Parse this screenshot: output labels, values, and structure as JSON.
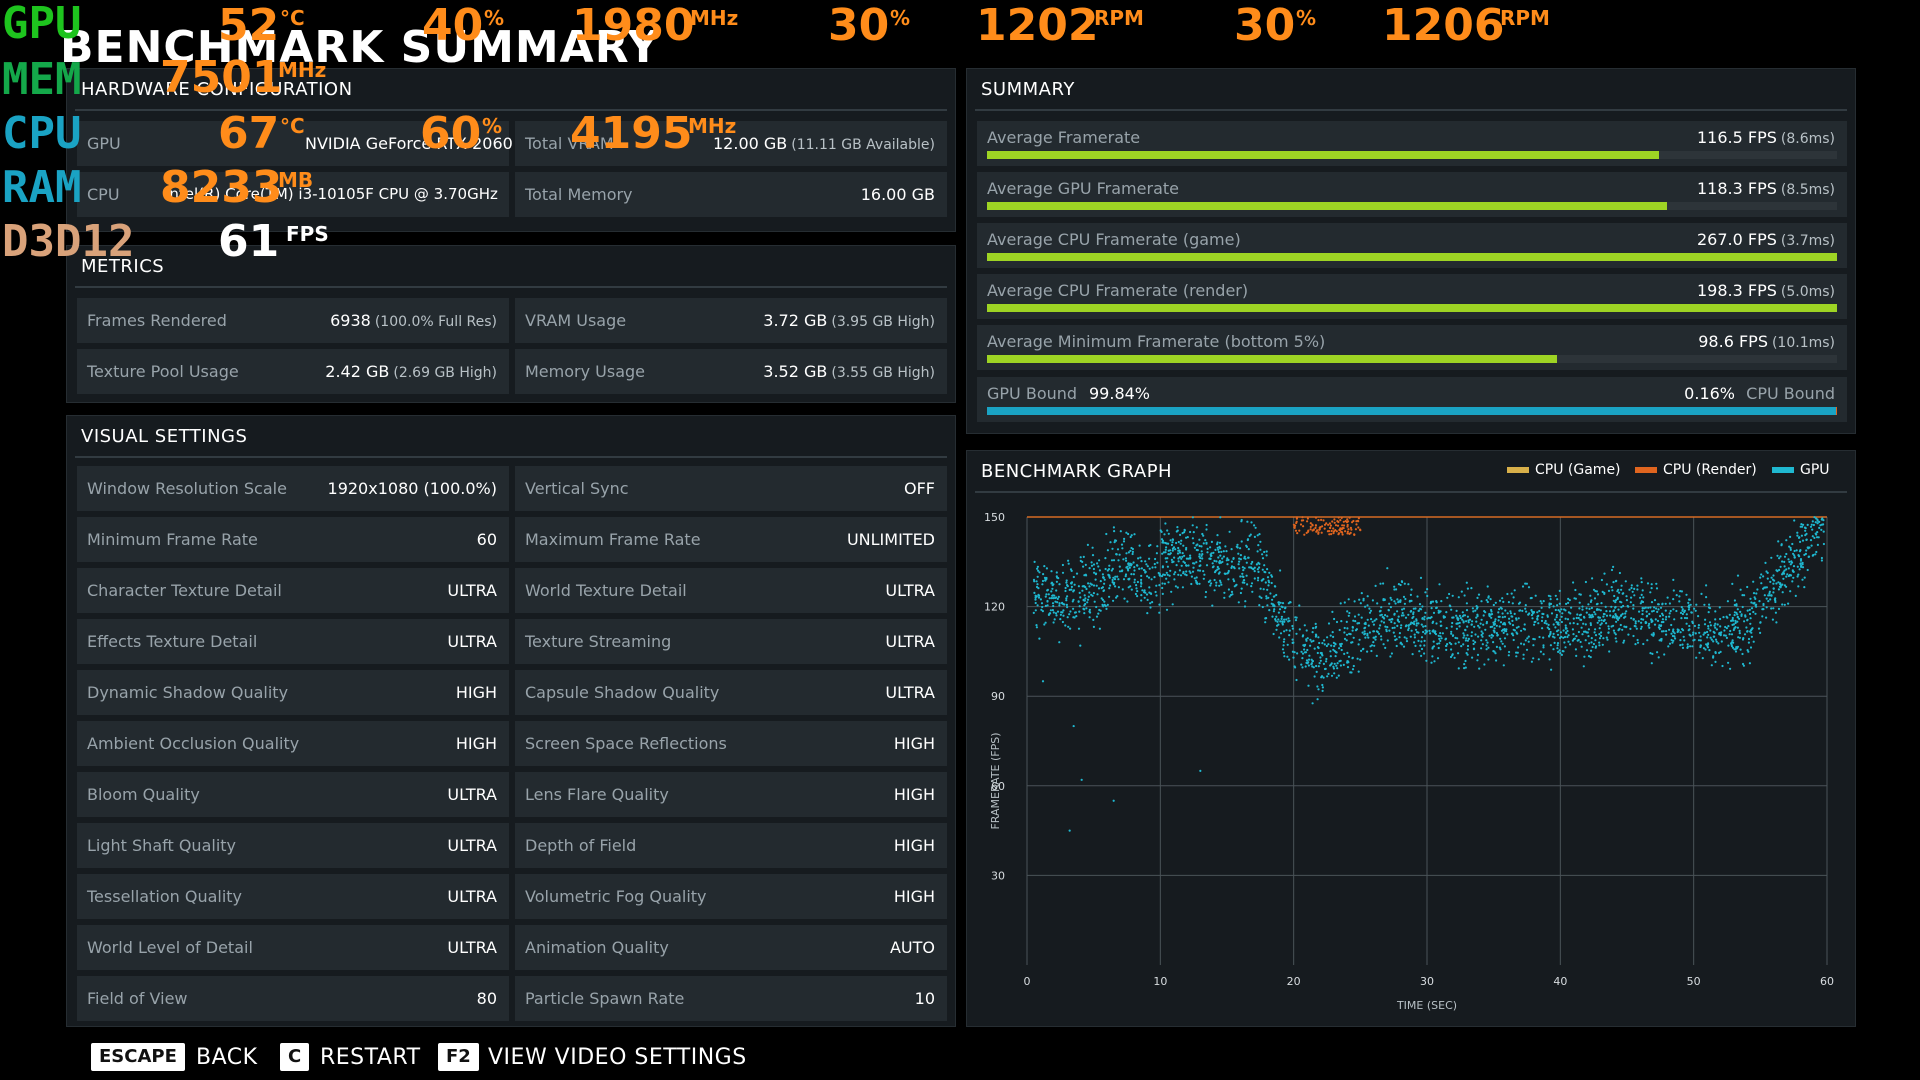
{
  "title": "BENCHMARK SUMMARY",
  "overlay": {
    "gpu": {
      "name": "GPU",
      "temp": "52",
      "temp_unit": "°C",
      "load": "40",
      "load_unit": "%",
      "clock": "1980",
      "clock_unit": "MHz",
      "fan1_pct": "30",
      "fan1_pct_unit": "%",
      "fan1_rpm": "1202",
      "fan1_rpm_unit": "RPM",
      "fan2_pct": "30",
      "fan2_pct_unit": "%",
      "fan2_rpm": "1206",
      "fan2_rpm_unit": "RPM"
    },
    "mem": {
      "name": "MEM",
      "clock": "7501",
      "clock_unit": "MHz"
    },
    "cpu": {
      "name": "CPU",
      "temp": "67",
      "temp_unit": "°C",
      "load": "60",
      "load_unit": "%",
      "clock": "4195",
      "clock_unit": "MHz"
    },
    "ram": {
      "name": "RAM",
      "used": "8233",
      "used_unit": "MB"
    },
    "api": {
      "name": "D3D12",
      "fps": "61",
      "fps_unit": "FPS"
    },
    "colors": {
      "gpu": "#1ec41e",
      "mem": "#14a84a",
      "cpu": "#1aa3c4",
      "ram": "#1aa3c4",
      "d3d": "#d9a27a",
      "value": "#ff8c1a"
    }
  },
  "hardware": {
    "title": "HARDWARE CONFIGURATION",
    "gpu_label": "GPU",
    "gpu_value": "NVIDIA GeForce RTX 2060",
    "vram_label": "Total VRAM",
    "vram_value": "12.00 GB",
    "vram_sub": "(11.11 GB Available)",
    "cpu_label": "CPU",
    "cpu_value": "Intel(R) Core(TM) i3-10105F CPU @ 3.70GHz",
    "mem_label": "Total Memory",
    "mem_value": "16.00 GB"
  },
  "metrics": {
    "title": "METRICS",
    "rows": [
      {
        "label": "Frames Rendered",
        "value": "6938",
        "sub": "(100.0% Full Res)"
      },
      {
        "label": "VRAM Usage",
        "value": "3.72 GB",
        "sub": "(3.95 GB High)"
      },
      {
        "label": "Texture Pool Usage",
        "value": "2.42 GB",
        "sub": "(2.69 GB High)"
      },
      {
        "label": "Memory Usage",
        "value": "3.52 GB",
        "sub": "(3.55 GB High)"
      }
    ]
  },
  "visual": {
    "title": "VISUAL SETTINGS",
    "rows": [
      {
        "label": "Window Resolution Scale",
        "value": "1920x1080 (100.0%)"
      },
      {
        "label": "Vertical Sync",
        "value": "OFF"
      },
      {
        "label": "Minimum Frame Rate",
        "value": "60"
      },
      {
        "label": "Maximum Frame Rate",
        "value": "UNLIMITED"
      },
      {
        "label": "Character Texture Detail",
        "value": "ULTRA"
      },
      {
        "label": "World Texture Detail",
        "value": "ULTRA"
      },
      {
        "label": "Effects Texture Detail",
        "value": "ULTRA"
      },
      {
        "label": "Texture Streaming",
        "value": "ULTRA"
      },
      {
        "label": "Dynamic Shadow Quality",
        "value": "HIGH"
      },
      {
        "label": "Capsule Shadow Quality",
        "value": "ULTRA"
      },
      {
        "label": "Ambient Occlusion Quality",
        "value": "HIGH"
      },
      {
        "label": "Screen Space Reflections",
        "value": "HIGH"
      },
      {
        "label": "Bloom Quality",
        "value": "ULTRA"
      },
      {
        "label": "Lens Flare Quality",
        "value": "HIGH"
      },
      {
        "label": "Light Shaft Quality",
        "value": "ULTRA"
      },
      {
        "label": "Depth of Field",
        "value": "HIGH"
      },
      {
        "label": "Tessellation Quality",
        "value": "ULTRA"
      },
      {
        "label": "Volumetric Fog Quality",
        "value": "HIGH"
      },
      {
        "label": "World Level of Detail",
        "value": "ULTRA"
      },
      {
        "label": "Animation Quality",
        "value": "AUTO"
      },
      {
        "label": "Field of View",
        "value": "80"
      },
      {
        "label": "Particle Spawn Rate",
        "value": "10"
      }
    ]
  },
  "summary": {
    "title": "SUMMARY",
    "rows": [
      {
        "label": "Average Framerate",
        "value": "116.5 FPS",
        "sub": "(8.6ms)",
        "fill": 0.79
      },
      {
        "label": "Average GPU Framerate",
        "value": "118.3 FPS",
        "sub": "(8.5ms)",
        "fill": 0.8
      },
      {
        "label": "Average CPU Framerate (game)",
        "value": "267.0 FPS",
        "sub": "(3.7ms)",
        "fill": 1.0
      },
      {
        "label": "Average CPU Framerate (render)",
        "value": "198.3 FPS",
        "sub": "(5.0ms)",
        "fill": 1.0
      },
      {
        "label": "Average Minimum Framerate (bottom 5%)",
        "value": "98.6 FPS",
        "sub": "(10.1ms)",
        "fill": 0.67
      }
    ],
    "bound": {
      "gpu_label": "GPU Bound",
      "gpu_value": "99.84%",
      "cpu_value": "0.16%",
      "cpu_label": "CPU Bound",
      "gpu_share": 0.9984
    },
    "bar_color": "#9ed424",
    "bound_color": "#1aa3c4"
  },
  "chart_data": {
    "type": "scatter",
    "title": "BENCHMARK GRAPH",
    "xlabel": "TIME (SEC)",
    "ylabel": "FRAMERATE (FPS)",
    "xlim": [
      0,
      60
    ],
    "ylim": [
      0,
      150
    ],
    "x_ticks": [
      "0",
      "10",
      "20",
      "30",
      "40",
      "50",
      "60"
    ],
    "y_ticks": [
      "30",
      "60",
      "90",
      "120",
      "150"
    ],
    "grid": true,
    "legend_position": "top-right",
    "series": [
      {
        "name": "CPU (Game)",
        "color": "#d8b04a",
        "trend": [
          [
            0,
            150
          ],
          [
            60,
            150
          ]
        ]
      },
      {
        "name": "CPU (Render)",
        "color": "#e0651f",
        "trend": [
          [
            0,
            150
          ],
          [
            60,
            150
          ]
        ]
      },
      {
        "name": "GPU",
        "color": "#1fb8d0",
        "trend": [
          [
            0,
            125
          ],
          [
            3,
            122
          ],
          [
            5,
            127
          ],
          [
            7,
            134
          ],
          [
            9,
            130
          ],
          [
            11,
            137
          ],
          [
            13,
            138
          ],
          [
            15,
            133
          ],
          [
            17,
            136
          ],
          [
            18,
            128
          ],
          [
            20,
            108
          ],
          [
            22,
            102
          ],
          [
            25,
            112
          ],
          [
            27,
            117
          ],
          [
            30,
            115
          ],
          [
            32,
            112
          ],
          [
            35,
            113
          ],
          [
            38,
            117
          ],
          [
            40,
            113
          ],
          [
            42,
            115
          ],
          [
            45,
            120
          ],
          [
            47,
            118
          ],
          [
            50,
            113
          ],
          [
            52,
            110
          ],
          [
            54,
            115
          ],
          [
            55,
            120
          ],
          [
            57,
            132
          ],
          [
            58,
            140
          ],
          [
            60,
            145
          ]
        ]
      }
    ]
  },
  "footer": {
    "back_key": "ESCAPE",
    "back_label": "BACK",
    "restart_key": "C",
    "restart_label": "RESTART",
    "video_key": "F2",
    "video_label": "VIEW VIDEO SETTINGS"
  }
}
